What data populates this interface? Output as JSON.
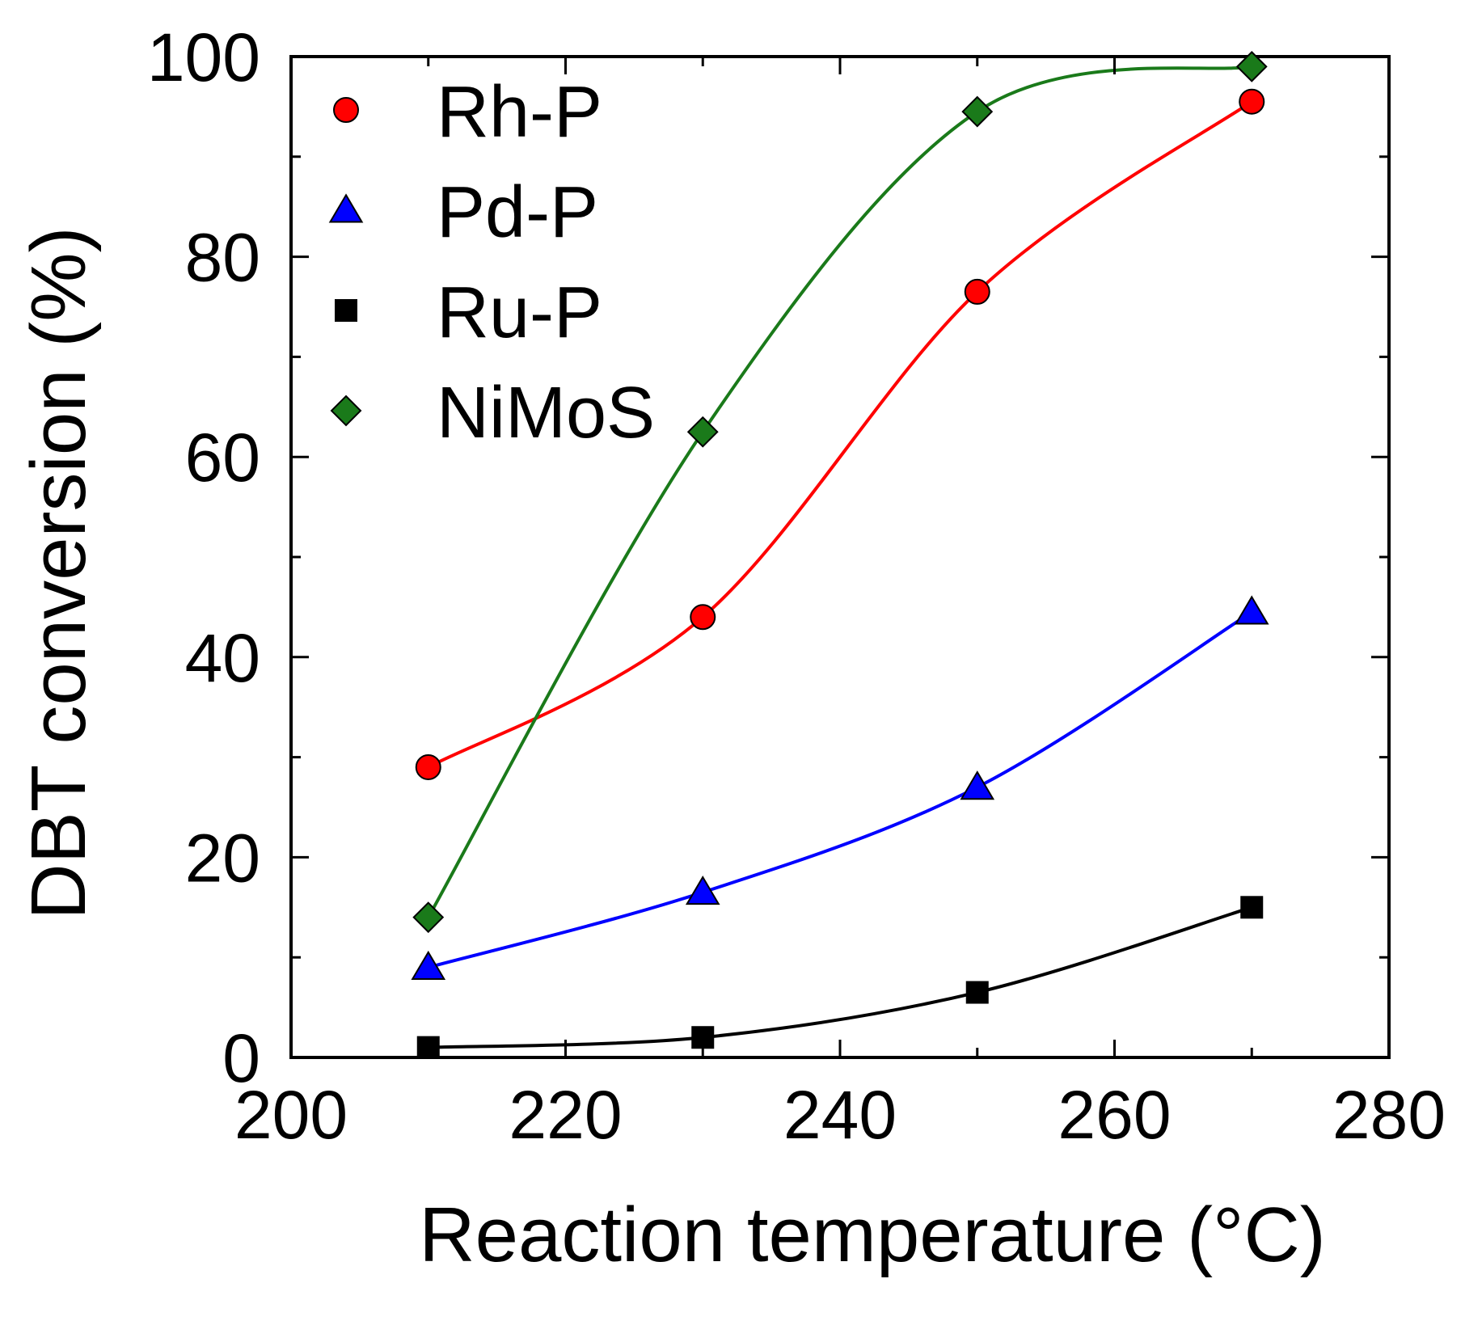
{
  "chart_data": {
    "type": "scatter",
    "title": "",
    "xlabel": "Reaction temperature (°C)",
    "ylabel": "DBT conversion (%)",
    "xlim": [
      200,
      280
    ],
    "ylim": [
      0,
      100
    ],
    "xticks": [
      200,
      220,
      240,
      260,
      280
    ],
    "yticks": [
      0,
      20,
      40,
      60,
      80,
      100
    ],
    "x_minor_step": 10,
    "y_minor_step": 10,
    "grid": false,
    "legend_position": "top-left",
    "fit_lines": true,
    "series": [
      {
        "name": "Rh-P",
        "marker": "circle",
        "color": "#ff0000",
        "line_color": "#ff0000",
        "x": [
          210,
          230,
          250,
          270
        ],
        "y": [
          29,
          44,
          76.5,
          95.5
        ]
      },
      {
        "name": "Pd-P",
        "marker": "triangle",
        "color": "#0000ff",
        "line_color": "#0000ff",
        "x": [
          210,
          230,
          250,
          270
        ],
        "y": [
          9,
          16.5,
          27,
          44.5
        ]
      },
      {
        "name": "Ru-P",
        "marker": "square",
        "color": "#000000",
        "line_color": "#000000",
        "x": [
          210,
          230,
          250,
          270
        ],
        "y": [
          1,
          2,
          6.5,
          15
        ]
      },
      {
        "name": "NiMoS",
        "marker": "diamond",
        "color": "#1a7a1a",
        "line_color": "#1a7a1a",
        "x": [
          210,
          230,
          250,
          270
        ],
        "y": [
          14,
          62.5,
          94.5,
          99
        ]
      }
    ]
  }
}
